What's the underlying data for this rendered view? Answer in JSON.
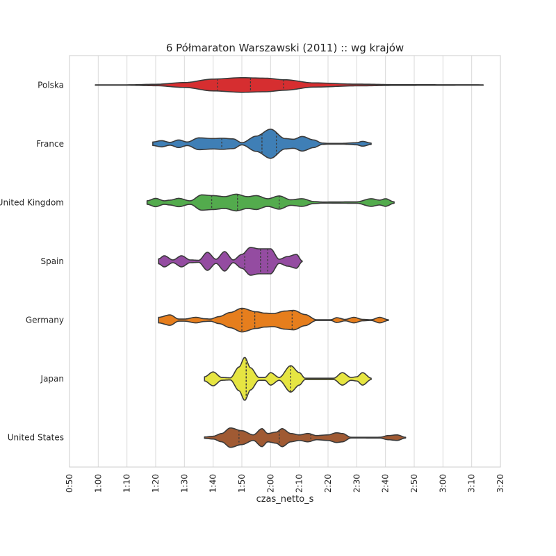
{
  "chart_data": {
    "type": "violin",
    "title": "6 Półmaraton Warszawski (2011) :: wg krajów",
    "xlabel": "czas_netto_s",
    "ylabel": "",
    "xlim_minutes": [
      50,
      200
    ],
    "x_tick_labels": [
      "0:50",
      "1:00",
      "1:10",
      "1:20",
      "1:30",
      "1:40",
      "1:50",
      "2:00",
      "2:10",
      "2:20",
      "2:30",
      "2:40",
      "2:50",
      "3:00",
      "3:10",
      "3:20"
    ],
    "grid": "vertical",
    "quartile_lines": "dashed",
    "categories": [
      "Polska",
      "France",
      "United Kingdom",
      "Spain",
      "Germany",
      "Japan",
      "United States"
    ],
    "colors": [
      "#d62e30",
      "#3f7fb6",
      "#53ab4d",
      "#944ca1",
      "#e67e1d",
      "#e6e542",
      "#a05a33"
    ],
    "series": [
      {
        "name": "Polska",
        "min": 59,
        "max": 194,
        "quartiles": [
          101.5,
          113,
          124.5
        ],
        "profile": [
          [
            59,
            0.3
          ],
          [
            70,
            0.3
          ],
          [
            80,
            1.0
          ],
          [
            90,
            3.5
          ],
          [
            100,
            8.5
          ],
          [
            110,
            10.5
          ],
          [
            118,
            9.8
          ],
          [
            125,
            7.5
          ],
          [
            135,
            3.0
          ],
          [
            150,
            1.2
          ],
          [
            165,
            0.5
          ],
          [
            194,
            0.3
          ]
        ]
      },
      {
        "name": "France",
        "min": 79,
        "max": 145,
        "quartiles": [
          103,
          117,
          122
        ],
        "profile": [
          [
            79,
            2.5
          ],
          [
            82,
            4.5
          ],
          [
            85,
            2.0
          ],
          [
            88,
            5.5
          ],
          [
            91,
            2.5
          ],
          [
            95,
            8.5
          ],
          [
            100,
            7.5
          ],
          [
            103,
            8.0
          ],
          [
            107,
            7.0
          ],
          [
            110,
            1.5
          ],
          [
            115,
            11
          ],
          [
            120,
            21
          ],
          [
            125,
            7.5
          ],
          [
            128,
            6.5
          ],
          [
            131,
            10.5
          ],
          [
            135,
            5.5
          ],
          [
            138,
            1.0
          ],
          [
            140,
            0.6
          ],
          [
            145,
            0.6
          ],
          [
            150,
            1.5
          ],
          [
            152,
            3.5
          ],
          [
            155,
            1.0
          ]
        ]
      },
      {
        "name": "United Kingdom",
        "min": 77,
        "max": 159,
        "quartiles": [
          99.5,
          108.5,
          123
        ],
        "profile": [
          [
            77,
            2.5
          ],
          [
            80,
            6
          ],
          [
            83,
            2.5
          ],
          [
            85,
            3.5
          ],
          [
            88,
            6
          ],
          [
            92,
            2.5
          ],
          [
            96,
            11
          ],
          [
            100,
            10
          ],
          [
            104,
            8.5
          ],
          [
            108,
            12
          ],
          [
            112,
            8.5
          ],
          [
            115,
            10
          ],
          [
            119,
            5.5
          ],
          [
            123,
            9.5
          ],
          [
            127,
            4
          ],
          [
            131,
            5.5
          ],
          [
            135,
            1.5
          ],
          [
            138,
            0.8
          ],
          [
            150,
            1.0
          ],
          [
            155,
            5.5
          ],
          [
            158,
            3.5
          ],
          [
            160,
            5.5
          ],
          [
            163,
            1.0
          ]
        ]
      },
      {
        "name": "Spain",
        "min": 81,
        "max": 130,
        "quartiles": [
          111,
          116.5,
          119
        ],
        "profile": [
          [
            81,
            3.5
          ],
          [
            83,
            8
          ],
          [
            86,
            2
          ],
          [
            89,
            8
          ],
          [
            92,
            2
          ],
          [
            95,
            1.5
          ],
          [
            98,
            13
          ],
          [
            101,
            3
          ],
          [
            104,
            14
          ],
          [
            107,
            2
          ],
          [
            110,
            10
          ],
          [
            113,
            20
          ],
          [
            116,
            18
          ],
          [
            120,
            18
          ],
          [
            123,
            3
          ],
          [
            126,
            7
          ],
          [
            129,
            10
          ],
          [
            131,
            0.5
          ]
        ]
      },
      {
        "name": "Germany",
        "min": 81,
        "max": 160,
        "quartiles": [
          110,
          114.5,
          127.5
        ],
        "profile": [
          [
            81,
            4
          ],
          [
            85,
            7.5
          ],
          [
            88,
            1.5
          ],
          [
            90,
            1.5
          ],
          [
            94,
            4
          ],
          [
            97,
            2
          ],
          [
            99,
            1.5
          ],
          [
            102,
            5
          ],
          [
            106,
            11
          ],
          [
            110,
            17
          ],
          [
            115,
            12
          ],
          [
            118,
            10
          ],
          [
            121,
            9.5
          ],
          [
            125,
            13
          ],
          [
            128,
            14
          ],
          [
            132,
            8
          ],
          [
            136,
            0.5
          ],
          [
            141,
            0.5
          ],
          [
            143,
            3.5
          ],
          [
            146,
            1
          ],
          [
            149,
            4
          ],
          [
            152,
            1
          ],
          [
            155,
            0.5
          ],
          [
            158,
            4
          ],
          [
            161,
            0.5
          ]
        ]
      },
      {
        "name": "Japan",
        "min": 97,
        "max": 154,
        "quartiles": [
          111.5,
          111.5,
          127
        ],
        "profile": [
          [
            97,
            3
          ],
          [
            100,
            10
          ],
          [
            103,
            2
          ],
          [
            106,
            1.5
          ],
          [
            109,
            17
          ],
          [
            111,
            31
          ],
          [
            113,
            16
          ],
          [
            116,
            2
          ],
          [
            118,
            2
          ],
          [
            120,
            9
          ],
          [
            123,
            2
          ],
          [
            127,
            19
          ],
          [
            130,
            9
          ],
          [
            132,
            1
          ],
          [
            140,
            1
          ],
          [
            142,
            1
          ],
          [
            145,
            9
          ],
          [
            148,
            2
          ],
          [
            150,
            3
          ],
          [
            152,
            9
          ],
          [
            155,
            1
          ]
        ]
      },
      {
        "name": "United States",
        "min": 97,
        "max": 166,
        "quartiles": [
          109,
          123,
          134
        ],
        "profile": [
          [
            97,
            1
          ],
          [
            100,
            2
          ],
          [
            103,
            6
          ],
          [
            106,
            14
          ],
          [
            110,
            10
          ],
          [
            114,
            4
          ],
          [
            117,
            13
          ],
          [
            119,
            6
          ],
          [
            122,
            8
          ],
          [
            124,
            13
          ],
          [
            127,
            6
          ],
          [
            130,
            4
          ],
          [
            133,
            6
          ],
          [
            136,
            3
          ],
          [
            140,
            4
          ],
          [
            143,
            7
          ],
          [
            145,
            6
          ],
          [
            148,
            0.5
          ],
          [
            158,
            0.6
          ],
          [
            161,
            3
          ],
          [
            164,
            4
          ],
          [
            167,
            0.5
          ]
        ]
      }
    ]
  }
}
